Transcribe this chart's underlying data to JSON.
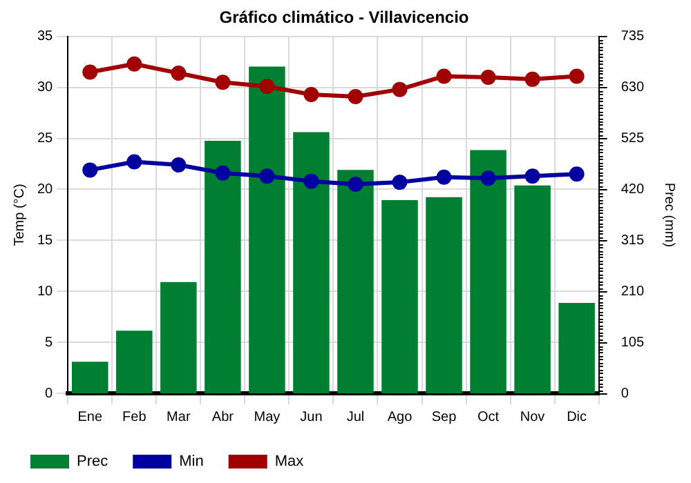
{
  "chart_data": {
    "type": "bar",
    "title": "Gráfico climático - Villavicencio",
    "ylabel": "Temp (°C)",
    "y2label": "Prec (mm)",
    "categories": [
      "Ene",
      "Feb",
      "Mar",
      "Abr",
      "May",
      "Jun",
      "Jul",
      "Ago",
      "Sep",
      "Oct",
      "Nov",
      "Dic"
    ],
    "series": [
      {
        "name": "Prec",
        "axis": "y2",
        "color": "#007f32",
        "values": [
          65,
          129,
          229,
          520,
          673,
          538,
          460,
          398,
          404,
          501,
          428,
          186
        ]
      },
      {
        "name": "Min",
        "type": "line",
        "color": "#0000a0",
        "values": [
          21.9,
          22.7,
          22.4,
          21.6,
          21.3,
          20.8,
          20.5,
          20.7,
          21.2,
          21.1,
          21.3,
          21.5
        ]
      },
      {
        "name": "Max",
        "type": "line",
        "color": "#a00000",
        "values": [
          31.5,
          32.3,
          31.4,
          30.5,
          30.1,
          29.3,
          29.1,
          29.8,
          31.1,
          31.0,
          30.8,
          31.1
        ]
      }
    ],
    "ylim": [
      0,
      35
    ],
    "yticks": [
      0,
      5,
      10,
      15,
      20,
      25,
      30,
      35
    ],
    "y2lim": [
      0,
      735
    ],
    "y2ticks": [
      0,
      105,
      210,
      315,
      420,
      525,
      630,
      735
    ],
    "grid": true,
    "legend": "bottom left",
    "marker": "circle",
    "line_style": "solid"
  }
}
